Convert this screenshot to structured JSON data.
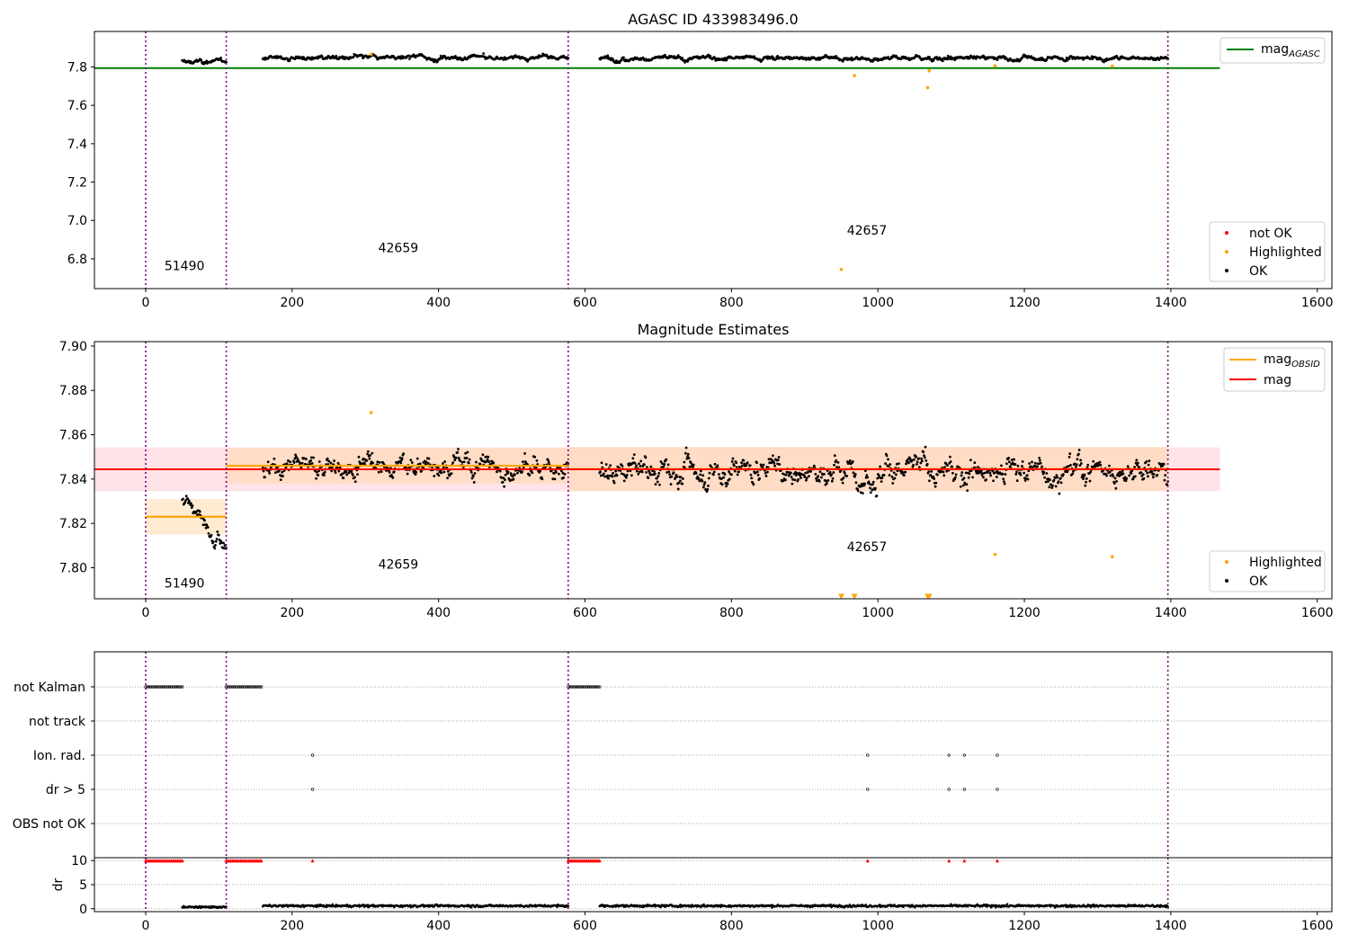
{
  "colors": {
    "mag_agasc": "#008000",
    "mag_obsid": "#ffa500",
    "mag": "#ff0000",
    "ok": "#000000",
    "highlighted": "#ffa500",
    "not_ok": "#ff0000",
    "obsid_line": "#800080",
    "band_mag": "#ffc0cb",
    "band_obsid": "#ffd39b"
  },
  "chart_data": [
    {
      "type": "scatter",
      "title": "AGASC ID 433983496.0",
      "xlabel": "",
      "ylabel": "",
      "xlim": [
        -70,
        1620
      ],
      "ylim": [
        6.645,
        7.985
      ],
      "xticks": [
        0,
        200,
        400,
        600,
        800,
        1000,
        1200,
        1400,
        1600
      ],
      "yticks": [
        6.8,
        7.0,
        7.2,
        7.4,
        7.6,
        7.8
      ],
      "obsid_boundaries": [
        0,
        110,
        577,
        1396
      ],
      "obsid_labels": [
        {
          "text": "51490",
          "x": 53,
          "y": 6.74
        },
        {
          "text": "42659",
          "x": 345,
          "y": 6.835
        },
        {
          "text": "42657",
          "x": 985,
          "y": 6.925
        }
      ],
      "series": [
        {
          "name": "mag_AGASC",
          "kind": "hline",
          "y": 7.794,
          "x_range": [
            -70,
            1467
          ]
        },
        {
          "name": "OK",
          "kind": "points",
          "segments": [
            {
              "x": [
                50,
                110
              ],
              "level": 7.827,
              "noise": 0.015
            },
            {
              "x": [
                160,
                577
              ],
              "level": 7.848,
              "noise": 0.015
            },
            {
              "x": [
                620,
                1396
              ],
              "level": 7.847,
              "noise": 0.015
            }
          ]
        },
        {
          "name": "Highlighted",
          "kind": "points",
          "x": [
            950,
            968,
            1068,
            1070,
            1160,
            1320,
            308
          ],
          "y": [
            6.745,
            7.755,
            7.692,
            7.78,
            7.806,
            7.805,
            7.866
          ]
        },
        {
          "name": "not OK",
          "kind": "points",
          "x": [],
          "y": []
        }
      ],
      "legend_upper": {
        "placement": "upper right",
        "entries": [
          {
            "main": "mag",
            "sub": "AGASC"
          }
        ]
      },
      "legend_lower": {
        "placement": "lower right",
        "entries": [
          "not OK",
          "Highlighted",
          "OK"
        ]
      }
    },
    {
      "type": "scatter",
      "title": "Magnitude Estimates",
      "xlabel": "",
      "ylabel": "",
      "xlim": [
        -70,
        1620
      ],
      "ylim": [
        7.786,
        7.902
      ],
      "xticks": [
        0,
        200,
        400,
        600,
        800,
        1000,
        1200,
        1400,
        1600
      ],
      "yticks": [
        7.8,
        7.82,
        7.84,
        7.86,
        7.88,
        7.9
      ],
      "obsid_boundaries": [
        0,
        110,
        577,
        1396
      ],
      "obsid_labels": [
        {
          "text": "51490",
          "x": 53,
          "y": 7.791
        },
        {
          "text": "42659",
          "x": 345,
          "y": 7.7995
        },
        {
          "text": "42657",
          "x": 985,
          "y": 7.8075
        }
      ],
      "series": [
        {
          "name": "mag",
          "kind": "hline",
          "y": 7.8444,
          "x_range": [
            -70,
            1467
          ],
          "band": [
            7.8345,
            7.8543
          ]
        },
        {
          "name": "mag_OBSID",
          "kind": "segments",
          "segments": [
            {
              "x": [
                0,
                110
              ],
              "y": 7.823,
              "band": [
                7.815,
                7.831
              ]
            },
            {
              "x": [
                110,
                577
              ],
              "y": 7.846,
              "band": [
                7.838,
                7.854
              ]
            },
            {
              "x": [
                577,
                1396
              ],
              "y": 7.8445,
              "band": [
                7.8345,
                7.8545
              ]
            }
          ]
        },
        {
          "name": "OK",
          "kind": "points",
          "segments": [
            {
              "x": [
                50,
                110
              ],
              "level": 7.822,
              "trend": -0.02,
              "noise": 0.004
            },
            {
              "x": [
                160,
                577
              ],
              "level": 7.846,
              "noise": 0.006
            },
            {
              "x": [
                620,
                1396
              ],
              "level": 7.844,
              "noise": 0.007
            }
          ]
        },
        {
          "name": "Highlighted",
          "kind": "points",
          "x": [
            308,
            1160,
            1320
          ],
          "y": [
            7.87,
            7.806,
            7.805
          ]
        },
        {
          "name": "Highlighted (below range)",
          "kind": "markers",
          "x": [
            950,
            968,
            1068,
            1070
          ],
          "y": [
            7.787,
            7.787,
            7.787,
            7.787
          ]
        }
      ],
      "legend_upper": {
        "placement": "upper right",
        "entries": [
          {
            "main": "mag",
            "sub": "OBSID"
          },
          {
            "main": "mag",
            "sub": ""
          }
        ]
      },
      "legend_lower": {
        "placement": "lower right",
        "entries": [
          "Highlighted",
          "OK"
        ]
      }
    },
    {
      "type": "scatter",
      "title": "",
      "xlabel": "",
      "ylabel": "",
      "xlim": [
        -70,
        1620
      ],
      "flag_rows": [
        "not Kalman",
        "not track",
        "Ion. rad.",
        "dr > 5",
        "OBS not OK"
      ],
      "flags": {
        "not Kalman": {
          "x_ranges": [
            [
              0,
              50
            ],
            [
              110,
              158
            ],
            [
              577,
              620
            ]
          ]
        },
        "not track": {
          "x_ranges": []
        },
        "Ion. rad.": {
          "x": [
            228,
            986,
            1097,
            1118,
            1163
          ]
        },
        "dr > 5": {
          "x": [
            228,
            986,
            1097,
            1118,
            1163
          ]
        },
        "OBS not OK": {
          "x_ranges": []
        }
      },
      "obsid_boundaries": [
        0,
        110,
        577,
        1396
      ]
    },
    {
      "type": "scatter",
      "title": "",
      "xlabel": "",
      "ylabel": "dr",
      "xlim": [
        -70,
        1620
      ],
      "ylim": [
        -0.6,
        10.6
      ],
      "xticks": [
        0,
        200,
        400,
        600,
        800,
        1000,
        1200,
        1400,
        1600
      ],
      "yticks": [
        0,
        5,
        10
      ],
      "obsid_boundaries": [
        0,
        110,
        577,
        1396
      ],
      "series": [
        {
          "name": "dr",
          "kind": "points",
          "segments": [
            {
              "x": [
                50,
                110
              ],
              "level": 0.35,
              "noise": 0.3
            },
            {
              "x": [
                160,
                577
              ],
              "level": 0.6,
              "noise": 0.4
            },
            {
              "x": [
                620,
                1396
              ],
              "level": 0.6,
              "noise": 0.4
            }
          ]
        },
        {
          "name": "dr (clipped at 10)",
          "kind": "markers",
          "x_ranges": [
            [
              0,
              50
            ],
            [
              110,
              158
            ],
            [
              577,
              620
            ]
          ],
          "x": [
            228,
            986,
            1097,
            1118,
            1163
          ],
          "y": 10
        }
      ]
    }
  ]
}
